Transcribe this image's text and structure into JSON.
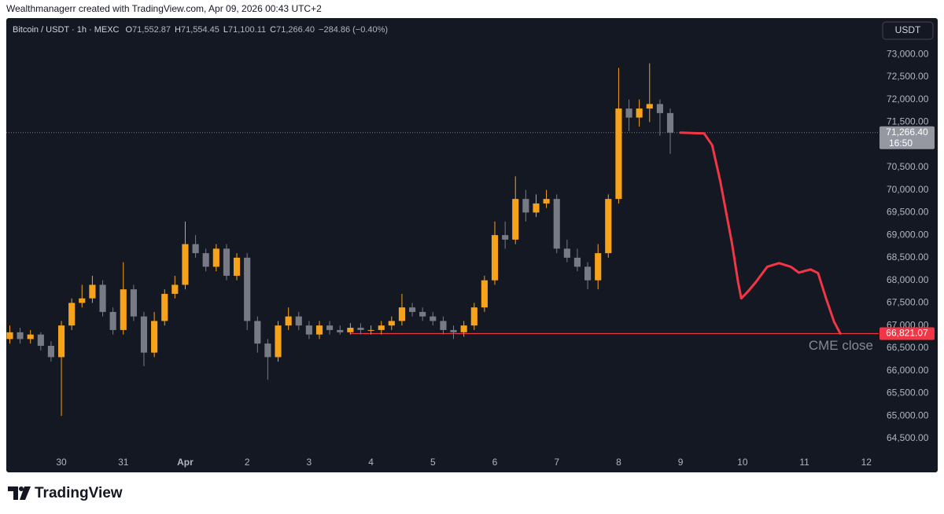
{
  "chart_data": {
    "type": "candlestick",
    "attribution": "Wealthmanagerr created with TradingView.com, Apr 09, 2026 00:43 UTC+2",
    "title": "Bitcoin / USDT · 1h · MEXC",
    "ohlc_legend": [
      {
        "key": "O",
        "value": "71,552.87"
      },
      {
        "key": "H",
        "value": "71,554.45"
      },
      {
        "key": "L",
        "value": "71,100.11"
      },
      {
        "key": "C",
        "value": "71,266.40"
      }
    ],
    "change": "−284.86 (−0.40%)",
    "currency": "USDT",
    "brand": "TradingView",
    "up_color": "#f7a21b",
    "down_color": "#787b86",
    "grid": false,
    "x": [
      -0.833,
      -0.667,
      -0.5,
      -0.333,
      -0.167,
      0,
      0.167,
      0.333,
      0.5,
      0.667,
      0.833,
      1,
      1.167,
      1.333,
      1.5,
      1.667,
      1.833,
      2,
      2.167,
      2.333,
      2.5,
      2.667,
      2.833,
      3,
      3.167,
      3.333,
      3.5,
      3.667,
      3.833,
      4,
      4.167,
      4.333,
      4.5,
      4.667,
      4.833,
      5,
      5.167,
      5.333,
      5.5,
      5.667,
      5.833,
      6,
      6.167,
      6.333,
      6.5,
      6.667,
      6.833,
      7,
      7.167,
      7.333,
      7.5,
      7.667,
      7.833,
      8,
      8.167,
      8.333,
      8.5,
      8.667,
      8.833,
      9,
      9.167,
      9.333,
      9.5,
      9.667,
      9.833
    ],
    "open": [
      66700,
      66850,
      66700,
      66800,
      66550,
      66300,
      67000,
      67500,
      67600,
      67900,
      67300,
      66900,
      67800,
      67200,
      66400,
      67100,
      67700,
      67900,
      68800,
      68600,
      68300,
      68700,
      68100,
      68500,
      67100,
      66600,
      66300,
      67000,
      67200,
      67000,
      66800,
      67000,
      66900,
      66850,
      66950,
      66900,
      66900,
      67000,
      67100,
      67400,
      67300,
      67200,
      67100,
      66900,
      66850,
      67000,
      67400,
      68000,
      69000,
      68900,
      69800,
      69500,
      69700,
      69800,
      68700,
      68500,
      68300,
      68000,
      68600,
      69800,
      71800,
      71600,
      71800,
      71900,
      71700
    ],
    "high": [
      67000,
      66950,
      66900,
      66850,
      66650,
      67100,
      67600,
      67900,
      68100,
      68000,
      67400,
      68400,
      67900,
      67300,
      67300,
      67800,
      68100,
      69300,
      69000,
      68700,
      68800,
      68800,
      68600,
      68600,
      67200,
      66700,
      67100,
      67400,
      67300,
      67100,
      67100,
      67100,
      67000,
      67050,
      67050,
      67000,
      67100,
      67200,
      67700,
      67500,
      67400,
      67300,
      67200,
      67000,
      67100,
      67500,
      68100,
      69300,
      69300,
      70300,
      70000,
      69900,
      70000,
      69900,
      68900,
      68700,
      68400,
      68800,
      69900,
      72700,
      72000,
      72000,
      72800,
      72000,
      71800
    ],
    "low": [
      66600,
      66600,
      66600,
      66450,
      66200,
      65000,
      66900,
      67400,
      67500,
      67200,
      66800,
      66800,
      67100,
      66100,
      66300,
      67000,
      67600,
      67800,
      68500,
      68200,
      68200,
      68000,
      68000,
      66900,
      66400,
      65800,
      66200,
      66900,
      66900,
      66700,
      66700,
      66800,
      66800,
      66800,
      66800,
      66800,
      66800,
      66900,
      67000,
      67200,
      67100,
      67000,
      66800,
      66700,
      66750,
      66900,
      67300,
      67900,
      68700,
      68800,
      69300,
      69400,
      69600,
      68600,
      68400,
      68200,
      67800,
      67800,
      68500,
      69700,
      71300,
      71400,
      71500,
      71200,
      70800
    ],
    "close": [
      66850,
      66700,
      66800,
      66550,
      66300,
      67000,
      67500,
      67600,
      67900,
      67300,
      66900,
      67800,
      67200,
      66400,
      67100,
      67700,
      67900,
      68800,
      68600,
      68300,
      68700,
      68100,
      68500,
      67100,
      66600,
      66300,
      67000,
      67200,
      67000,
      66800,
      67000,
      66900,
      66850,
      66950,
      66900,
      66900,
      67000,
      67100,
      67400,
      67300,
      67200,
      67100,
      66900,
      66850,
      67000,
      67400,
      68000,
      69000,
      68900,
      69800,
      69500,
      69700,
      69800,
      68700,
      68500,
      68300,
      68000,
      68600,
      69800,
      71800,
      71600,
      71800,
      71900,
      71700,
      71266.4
    ],
    "last_price": {
      "value": 71266.4,
      "label": "71,266.40",
      "countdown": "16:50"
    },
    "hline": {
      "value": 66821.07,
      "label": "66,821.07",
      "text": "CME close",
      "x_start": 4.66,
      "color": "#f23645"
    },
    "projection": {
      "color": "#f23645",
      "x": [
        10.0,
        10.38,
        10.51,
        10.64,
        10.83,
        10.93,
        10.98,
        11.08,
        11.21,
        11.4,
        11.59,
        11.78,
        11.91,
        12.1,
        12.22,
        12.35,
        12.48,
        12.58
      ],
      "values": [
        71266.4,
        71250,
        70990,
        70200,
        68820,
        67950,
        67600,
        67740,
        67950,
        68300,
        68380,
        68300,
        68170,
        68240,
        68160,
        67600,
        67080,
        66821.07
      ]
    },
    "xlim": [
      -0.89,
      13.2
    ],
    "ylim": [
      64290,
      73680
    ],
    "xticks": [
      {
        "value": 0,
        "label": "30"
      },
      {
        "value": 1,
        "label": "31"
      },
      {
        "value": 2,
        "label": "Apr"
      },
      {
        "value": 3,
        "label": "2"
      },
      {
        "value": 4,
        "label": "3"
      },
      {
        "value": 5,
        "label": "4"
      },
      {
        "value": 6,
        "label": "5"
      },
      {
        "value": 7,
        "label": "6"
      },
      {
        "value": 8,
        "label": "7"
      },
      {
        "value": 9,
        "label": "8"
      },
      {
        "value": 10,
        "label": "9"
      },
      {
        "value": 11,
        "label": "10"
      },
      {
        "value": 12,
        "label": "11"
      },
      {
        "value": 13,
        "label": "12"
      }
    ],
    "yticks": [
      {
        "value": 64500,
        "label": "64,500.00"
      },
      {
        "value": 65000,
        "label": "65,000.00"
      },
      {
        "value": 65500,
        "label": "65,500.00"
      },
      {
        "value": 66000,
        "label": "66,000.00"
      },
      {
        "value": 66500,
        "label": "66,500.00"
      },
      {
        "value": 67000,
        "label": "67,000.00"
      },
      {
        "value": 67500,
        "label": "67,500.00"
      },
      {
        "value": 68000,
        "label": "68,000.00"
      },
      {
        "value": 68500,
        "label": "68,500.00"
      },
      {
        "value": 69000,
        "label": "69,000.00"
      },
      {
        "value": 69500,
        "label": "69,500.00"
      },
      {
        "value": 70000,
        "label": "70,000.00"
      },
      {
        "value": 70500,
        "label": "70,500.00"
      },
      {
        "value": 71500,
        "label": "71,500.00"
      },
      {
        "value": 72000,
        "label": "72,000.00"
      },
      {
        "value": 72500,
        "label": "72,500.00"
      },
      {
        "value": 73000,
        "label": "73,000.00"
      }
    ]
  }
}
